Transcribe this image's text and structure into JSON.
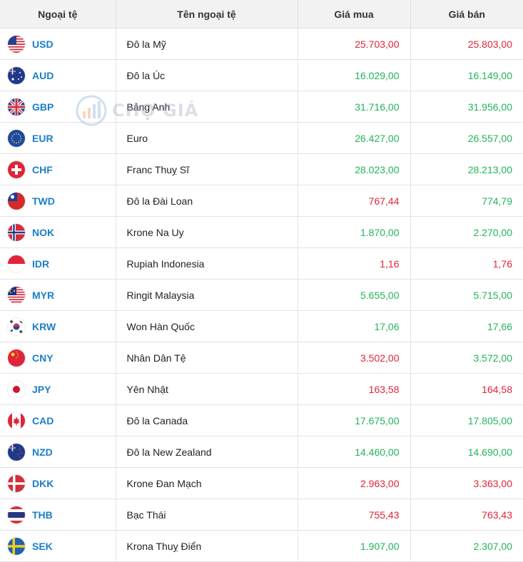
{
  "headers": {
    "currency": "Ngoại tệ",
    "name": "Tên ngoại tệ",
    "buy": "Giá mua",
    "sell": "Giá bán"
  },
  "watermark": {
    "text": "CHỢ GIÁ"
  },
  "colors": {
    "up": "#22b45a",
    "down": "#e0243a",
    "code": "#1a7fc9"
  },
  "rows": [
    {
      "code": "USD",
      "name": "Đô la Mỹ",
      "buy": "25.703,00",
      "sell": "25.803,00",
      "buy_trend": "down",
      "sell_trend": "down",
      "flag": "us-flag"
    },
    {
      "code": "AUD",
      "name": "Đô la Úc",
      "buy": "16.029,00",
      "sell": "16.149,00",
      "buy_trend": "up",
      "sell_trend": "up",
      "flag": "au-flag"
    },
    {
      "code": "GBP",
      "name": "Bảng Anh",
      "buy": "31.716,00",
      "sell": "31.956,00",
      "buy_trend": "up",
      "sell_trend": "up",
      "flag": "gb-flag"
    },
    {
      "code": "EUR",
      "name": "Euro",
      "buy": "26.427,00",
      "sell": "26.557,00",
      "buy_trend": "up",
      "sell_trend": "up",
      "flag": "eu-flag"
    },
    {
      "code": "CHF",
      "name": "Franc Thuỵ Sĩ",
      "buy": "28.023,00",
      "sell": "28.213,00",
      "buy_trend": "up",
      "sell_trend": "up",
      "flag": "ch-flag"
    },
    {
      "code": "TWD",
      "name": "Đô la Đài Loan",
      "buy": "767,44",
      "sell": "774,79",
      "buy_trend": "down",
      "sell_trend": "up",
      "flag": "tw-flag"
    },
    {
      "code": "NOK",
      "name": "Krone Na Uy",
      "buy": "1.870,00",
      "sell": "2.270,00",
      "buy_trend": "up",
      "sell_trend": "up",
      "flag": "no-flag"
    },
    {
      "code": "IDR",
      "name": "Rupiah Indonesia",
      "buy": "1,16",
      "sell": "1,76",
      "buy_trend": "down",
      "sell_trend": "down",
      "flag": "id-flag"
    },
    {
      "code": "MYR",
      "name": "Ringit Malaysia",
      "buy": "5.655,00",
      "sell": "5.715,00",
      "buy_trend": "up",
      "sell_trend": "up",
      "flag": "my-flag"
    },
    {
      "code": "KRW",
      "name": "Won Hàn Quốc",
      "buy": "17,06",
      "sell": "17,66",
      "buy_trend": "up",
      "sell_trend": "up",
      "flag": "kr-flag"
    },
    {
      "code": "CNY",
      "name": "Nhân Dân Tệ",
      "buy": "3.502,00",
      "sell": "3.572,00",
      "buy_trend": "down",
      "sell_trend": "up",
      "flag": "cn-flag"
    },
    {
      "code": "JPY",
      "name": "Yên Nhật",
      "buy": "163,58",
      "sell": "164,58",
      "buy_trend": "down",
      "sell_trend": "down",
      "flag": "jp-flag"
    },
    {
      "code": "CAD",
      "name": "Đô la Canada",
      "buy": "17.675,00",
      "sell": "17.805,00",
      "buy_trend": "up",
      "sell_trend": "up",
      "flag": "ca-flag"
    },
    {
      "code": "NZD",
      "name": "Đô la New Zealand",
      "buy": "14.460,00",
      "sell": "14.690,00",
      "buy_trend": "up",
      "sell_trend": "up",
      "flag": "nz-flag"
    },
    {
      "code": "DKK",
      "name": "Krone Đan Mạch",
      "buy": "2.963,00",
      "sell": "3.363,00",
      "buy_trend": "down",
      "sell_trend": "down",
      "flag": "dk-flag"
    },
    {
      "code": "THB",
      "name": "Bạc Thái",
      "buy": "755,43",
      "sell": "763,43",
      "buy_trend": "down",
      "sell_trend": "down",
      "flag": "th-flag"
    },
    {
      "code": "SEK",
      "name": "Krona Thuỵ Điển",
      "buy": "1.907,00",
      "sell": "2.307,00",
      "buy_trend": "up",
      "sell_trend": "up",
      "flag": "se-flag"
    }
  ]
}
